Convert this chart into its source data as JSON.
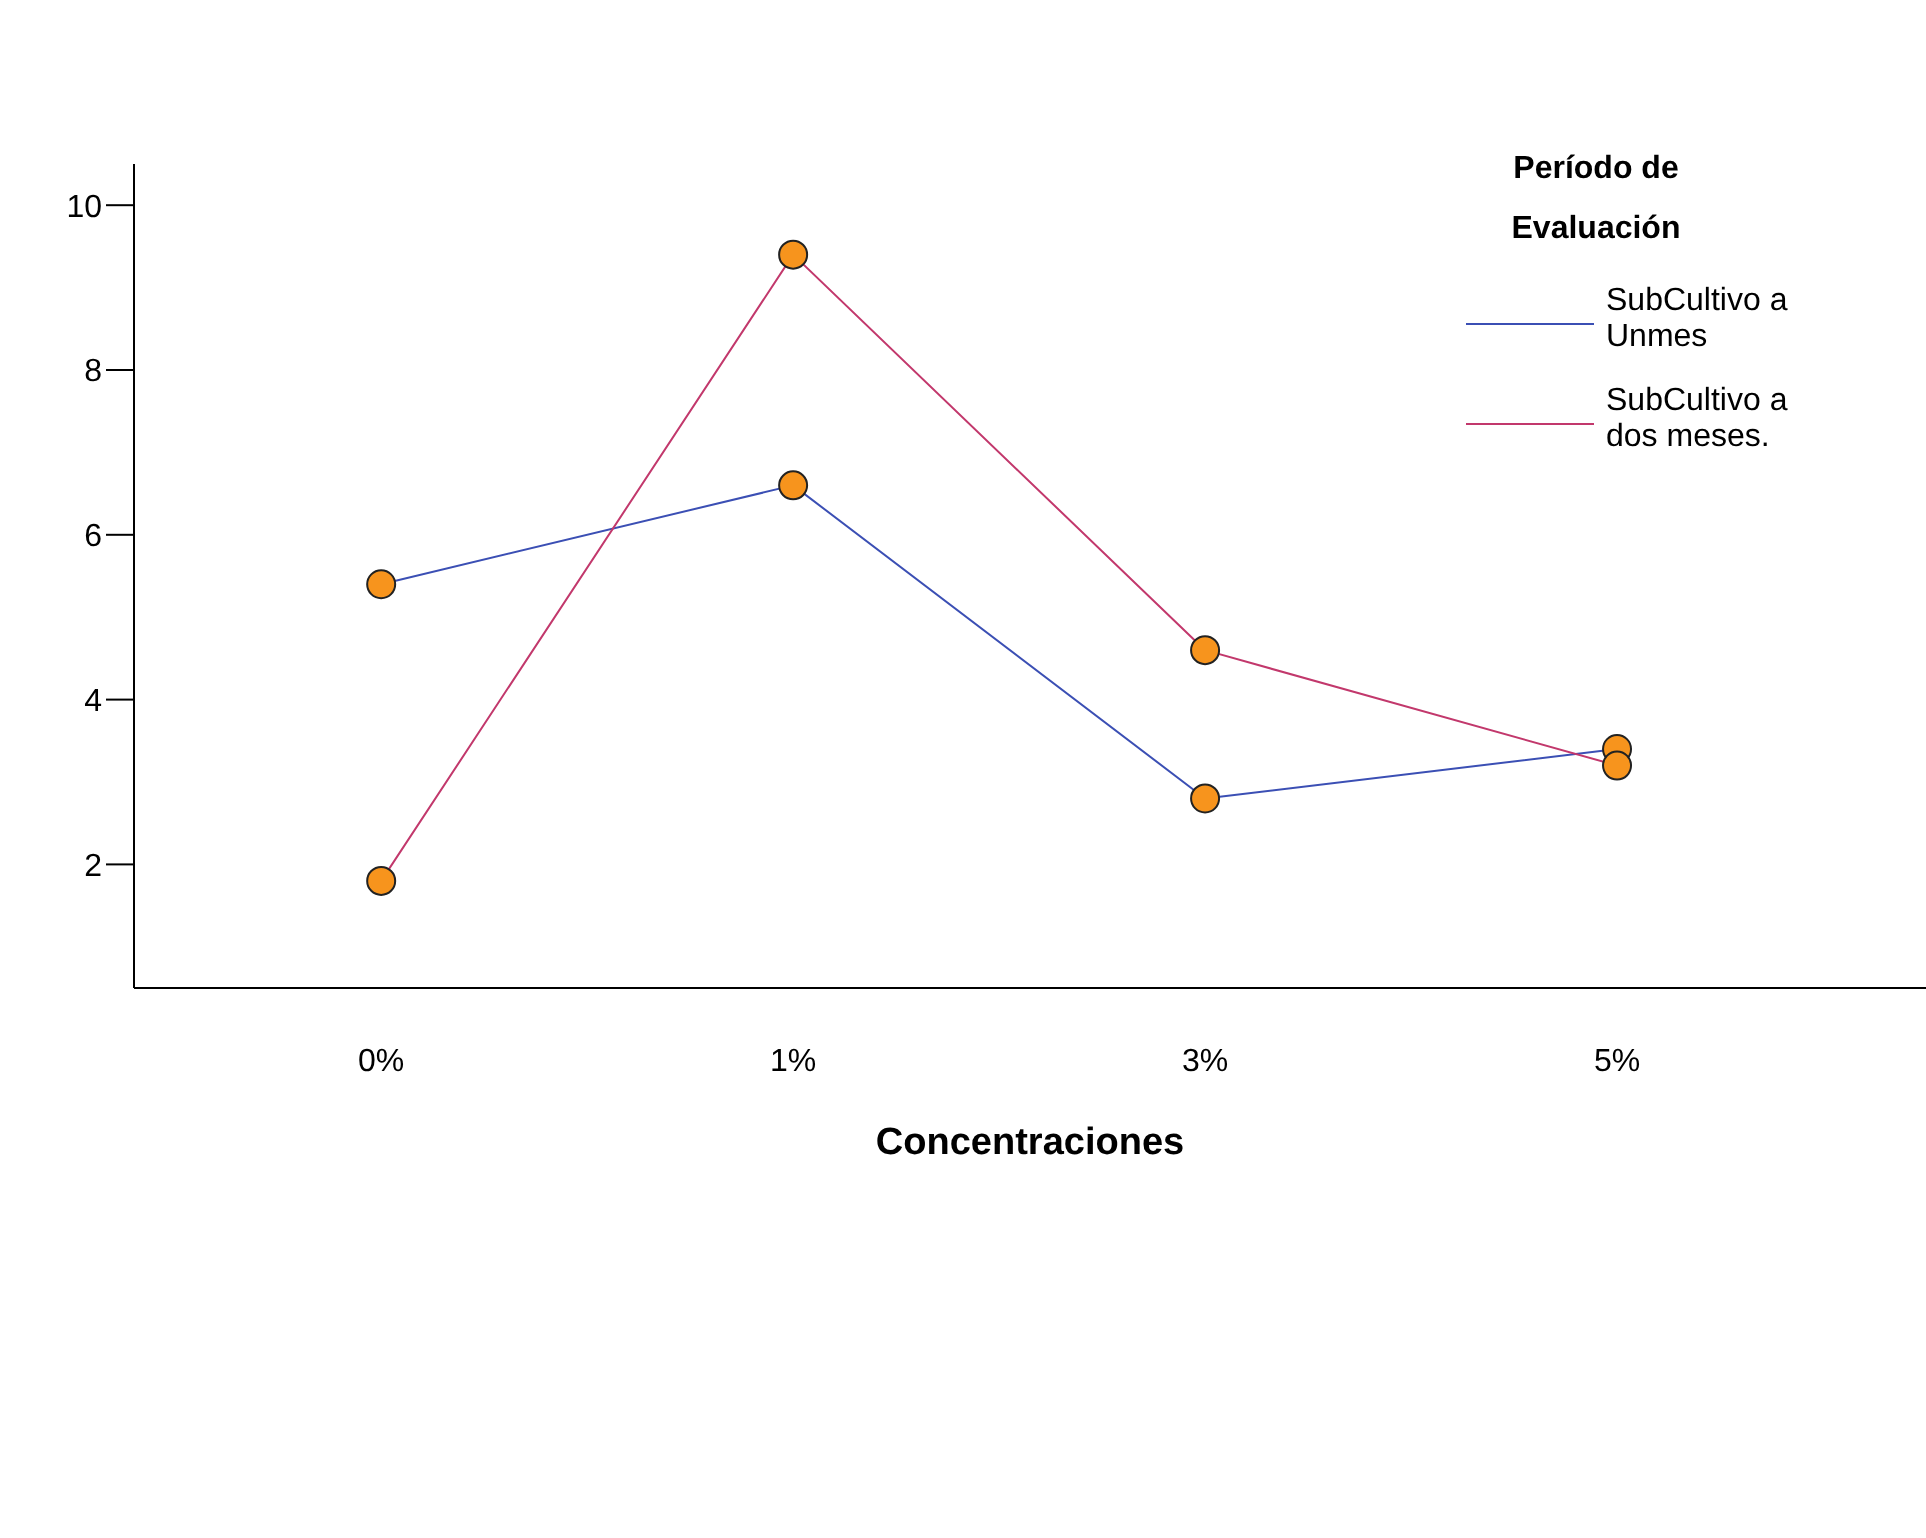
{
  "chart_data": {
    "type": "line",
    "xlabel": "Concentraciones",
    "legend_title": "Período de Evaluación",
    "categories": [
      "0%",
      "1%",
      "3%",
      "5%"
    ],
    "series": [
      {
        "name": "SubCultivo a Unmes",
        "color": "#3b4fb4",
        "values": [
          5.4,
          6.6,
          2.8,
          3.4
        ]
      },
      {
        "name": "SubCultivo a dos meses.",
        "color": "#c2386c",
        "values": [
          1.8,
          9.4,
          4.6,
          3.2
        ]
      }
    ],
    "ylim": [
      0.5,
      10.5
    ],
    "yticks": [
      2,
      4,
      6,
      8,
      10
    ],
    "legend": "top right",
    "marker": "circle",
    "line_style": "solid"
  }
}
